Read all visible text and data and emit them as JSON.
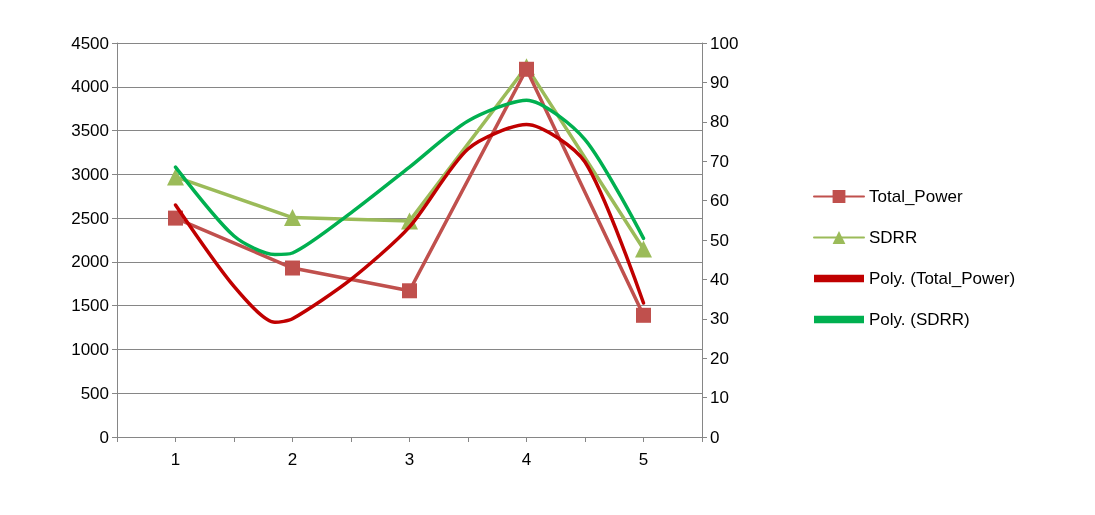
{
  "chart_data": {
    "type": "line",
    "x": [
      1,
      2,
      3,
      4,
      5
    ],
    "xlim": [
      0.5,
      5.5
    ],
    "xticks": [
      {
        "value": 0.5,
        "label": null
      },
      1,
      {
        "value": 1.5,
        "label": null
      },
      2,
      {
        "value": 2.5,
        "label": null
      },
      3,
      {
        "value": 3.5,
        "label": null
      },
      4,
      {
        "value": 4.5,
        "label": null
      },
      5,
      {
        "value": 5.5,
        "label": null
      }
    ],
    "ylim": [
      0,
      4500
    ],
    "yticks": [
      0,
      500,
      1000,
      1500,
      2000,
      2500,
      3000,
      3500,
      4000,
      4500
    ],
    "y2lim": [
      0,
      100
    ],
    "y2ticks": [
      0,
      10,
      20,
      30,
      40,
      50,
      60,
      70,
      80,
      90,
      100
    ],
    "grid": "y",
    "legend": "right",
    "series": [
      {
        "name": "Total_Power",
        "color": "#c0504d",
        "marker": "square",
        "values": [
          2500,
          1930,
          1670,
          4200,
          1390
        ]
      },
      {
        "name": "SDRR",
        "color": "#9bbb59",
        "marker": "triangle",
        "axis": "y2",
        "values": [
          66,
          55.7,
          54.8,
          94,
          47.7
        ]
      },
      {
        "name": "Poly. (Total_Power)",
        "color": "#c00000",
        "marker": "none",
        "x": [
          1,
          1.5,
          1.85,
          2,
          2.5,
          3,
          3.5,
          4,
          4.5,
          5
        ],
        "values": [
          2650,
          1720,
          1310,
          1350,
          1800,
          2400,
          3290,
          3570,
          3140,
          1530
        ]
      },
      {
        "name": "Poly. (SDRR)",
        "color": "#00b050",
        "marker": "none",
        "axis": "y2",
        "x": [
          1,
          1.5,
          1.85,
          2,
          2.5,
          3,
          3.5,
          4,
          4.5,
          5
        ],
        "values": [
          68.5,
          51,
          46.3,
          46.7,
          56.9,
          68.5,
          80.2,
          85.5,
          75.5,
          50.4
        ]
      }
    ]
  }
}
